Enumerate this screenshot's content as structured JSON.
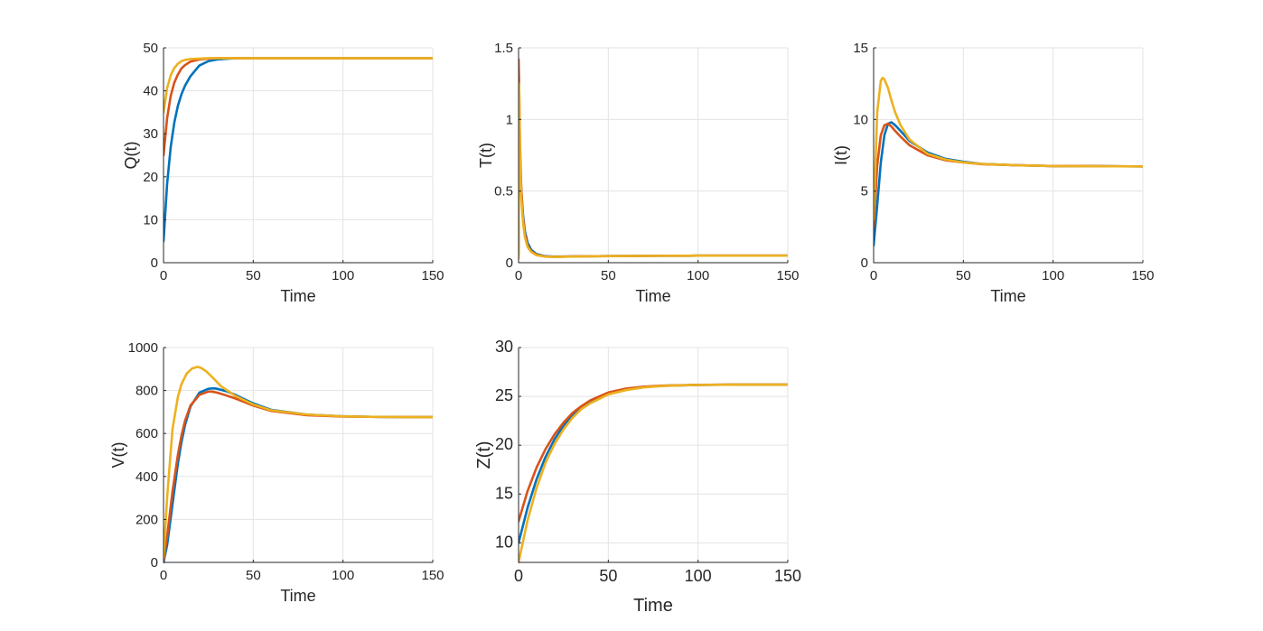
{
  "figure": {
    "colors": [
      "#0072BD",
      "#D95319",
      "#EDB120"
    ]
  },
  "chart_data": [
    {
      "type": "line",
      "xlabel": "Time",
      "ylabel": "Q(t)",
      "xlim": [
        0,
        150
      ],
      "ylim": [
        0,
        50
      ],
      "xticks": [
        0,
        50,
        100,
        150
      ],
      "yticks": [
        0,
        10,
        20,
        30,
        40,
        50
      ],
      "grid": true,
      "series": [
        {
          "color": "#0072BD",
          "x": [
            0,
            2,
            4,
            6,
            8,
            10,
            12,
            15,
            20,
            25,
            30,
            40,
            60,
            80,
            100,
            120,
            150
          ],
          "y": [
            5,
            18.3,
            26.9,
            32.6,
            36.5,
            39.2,
            41.2,
            43.4,
            45.9,
            46.9,
            47.3,
            47.6,
            47.6,
            47.6,
            47.6,
            47.6,
            47.6
          ]
        },
        {
          "color": "#D95319",
          "x": [
            0,
            2,
            4,
            6,
            8,
            10,
            12,
            15,
            20,
            25,
            30,
            40,
            60,
            80,
            100,
            120,
            150
          ],
          "y": [
            25,
            33.6,
            38.8,
            41.9,
            43.8,
            45.2,
            46.0,
            46.8,
            47.3,
            47.5,
            47.6,
            47.6,
            47.6,
            47.6,
            47.6,
            47.6,
            47.6
          ]
        },
        {
          "color": "#EDB120",
          "x": [
            0,
            2,
            4,
            6,
            8,
            10,
            12,
            15,
            20,
            25,
            30,
            40,
            60,
            80,
            100,
            120,
            150
          ],
          "y": [
            35,
            40.6,
            43.6,
            45.3,
            46.3,
            46.9,
            47.2,
            47.4,
            47.5,
            47.6,
            47.6,
            47.6,
            47.6,
            47.6,
            47.6,
            47.6,
            47.6
          ]
        }
      ]
    },
    {
      "type": "line",
      "xlabel": "Time",
      "ylabel": "T(t)",
      "xlim": [
        0,
        150
      ],
      "ylim": [
        0,
        1.5
      ],
      "xticks": [
        0,
        50,
        100,
        150
      ],
      "yticks": [
        0,
        0.5,
        1,
        1.5
      ],
      "grid": true,
      "series": [
        {
          "color": "#0072BD",
          "x": [
            0,
            0.3,
            0.8,
            1.5,
            2.5,
            3.5,
            5,
            7,
            10,
            15,
            20,
            30,
            50,
            80,
            100,
            130,
            150
          ],
          "y": [
            0.06,
            0.95,
            0.72,
            0.5,
            0.33,
            0.22,
            0.14,
            0.09,
            0.06,
            0.045,
            0.042,
            0.044,
            0.046,
            0.048,
            0.049,
            0.049,
            0.049
          ]
        },
        {
          "color": "#D95319",
          "x": [
            0,
            0.3,
            0.8,
            1.5,
            2.5,
            3.5,
            5,
            7,
            10,
            15,
            20,
            30,
            50,
            80,
            100,
            130,
            150
          ],
          "y": [
            1.42,
            1.25,
            0.82,
            0.52,
            0.31,
            0.2,
            0.12,
            0.08,
            0.055,
            0.043,
            0.041,
            0.044,
            0.046,
            0.048,
            0.049,
            0.049,
            0.049
          ]
        },
        {
          "color": "#EDB120",
          "x": [
            0,
            0.3,
            0.8,
            1.5,
            2.5,
            3.5,
            5,
            7,
            10,
            15,
            20,
            30,
            50,
            80,
            100,
            130,
            150
          ],
          "y": [
            0.03,
            1.25,
            0.75,
            0.46,
            0.28,
            0.18,
            0.11,
            0.075,
            0.052,
            0.042,
            0.04,
            0.043,
            0.046,
            0.048,
            0.049,
            0.049,
            0.049
          ]
        }
      ]
    },
    {
      "type": "line",
      "xlabel": "Time",
      "ylabel": "I(t)",
      "xlim": [
        0,
        150
      ],
      "ylim": [
        0,
        15
      ],
      "xticks": [
        0,
        50,
        100,
        150
      ],
      "yticks": [
        0,
        5,
        10,
        15
      ],
      "grid": true,
      "series": [
        {
          "color": "#0072BD",
          "x": [
            0,
            2,
            4,
            6,
            8,
            10,
            12,
            15,
            20,
            30,
            40,
            50,
            60,
            80,
            100,
            120,
            150
          ],
          "y": [
            1.2,
            4.0,
            7.0,
            8.9,
            9.7,
            9.8,
            9.6,
            9.2,
            8.5,
            7.7,
            7.25,
            7.05,
            6.9,
            6.8,
            6.75,
            6.75,
            6.72
          ]
        },
        {
          "color": "#D95319",
          "x": [
            0,
            2,
            4,
            6,
            8,
            10,
            12,
            15,
            20,
            30,
            40,
            50,
            60,
            80,
            100,
            120,
            150
          ],
          "y": [
            2.5,
            6.8,
            8.9,
            9.6,
            9.7,
            9.5,
            9.2,
            8.8,
            8.2,
            7.5,
            7.15,
            7.0,
            6.88,
            6.8,
            6.75,
            6.75,
            6.72
          ]
        },
        {
          "color": "#EDB120",
          "x": [
            0,
            2,
            4,
            5,
            6,
            8,
            10,
            12,
            15,
            20,
            30,
            40,
            50,
            60,
            80,
            100,
            150
          ],
          "y": [
            3.0,
            10.5,
            12.7,
            12.9,
            12.8,
            12.2,
            11.3,
            10.5,
            9.6,
            8.6,
            7.6,
            7.2,
            7.0,
            6.9,
            6.8,
            6.75,
            6.72
          ]
        }
      ]
    },
    {
      "type": "line",
      "xlabel": "Time",
      "ylabel": "V(t)",
      "xlim": [
        0,
        150
      ],
      "ylim": [
        0,
        1000
      ],
      "xticks": [
        0,
        50,
        100,
        150
      ],
      "yticks": [
        0,
        200,
        400,
        600,
        800,
        1000
      ],
      "grid": true,
      "series": [
        {
          "color": "#0072BD",
          "x": [
            0,
            2,
            5,
            8,
            10,
            12,
            15,
            20,
            25,
            28,
            30,
            35,
            40,
            50,
            60,
            80,
            100,
            120,
            150
          ],
          "y": [
            0,
            80,
            270,
            460,
            560,
            640,
            725,
            790,
            808,
            810,
            808,
            797,
            780,
            740,
            710,
            688,
            680,
            677,
            676
          ]
        },
        {
          "color": "#D95319",
          "x": [
            0,
            2,
            5,
            8,
            10,
            12,
            15,
            20,
            25,
            27,
            30,
            35,
            40,
            50,
            60,
            80,
            100,
            120,
            150
          ],
          "y": [
            10,
            120,
            330,
            500,
            590,
            660,
            730,
            780,
            795,
            795,
            790,
            777,
            763,
            730,
            705,
            685,
            679,
            677,
            676
          ]
        },
        {
          "color": "#EDB120",
          "x": [
            0,
            2,
            5,
            8,
            10,
            13,
            16,
            19,
            21,
            24,
            28,
            32,
            40,
            50,
            60,
            80,
            100,
            120,
            150
          ],
          "y": [
            20,
            300,
            620,
            770,
            830,
            880,
            903,
            910,
            905,
            888,
            855,
            820,
            775,
            735,
            708,
            688,
            680,
            677,
            676
          ]
        }
      ]
    },
    {
      "type": "line",
      "xlabel": "Time",
      "ylabel": "Z(t)",
      "xlim": [
        0,
        150
      ],
      "ylim": [
        8,
        30
      ],
      "xticks": [
        0,
        50,
        100,
        150
      ],
      "yticks": [
        10,
        15,
        20,
        25,
        30
      ],
      "grid": true,
      "series": [
        {
          "color": "#0072BD",
          "x": [
            0,
            5,
            10,
            15,
            20,
            25,
            30,
            35,
            40,
            50,
            60,
            70,
            80,
            100,
            120,
            150
          ],
          "y": [
            10,
            13.6,
            16.5,
            18.8,
            20.6,
            22.0,
            23.1,
            23.9,
            24.5,
            25.3,
            25.7,
            25.95,
            26.08,
            26.17,
            26.2,
            26.2
          ]
        },
        {
          "color": "#D95319",
          "x": [
            0,
            5,
            10,
            15,
            20,
            25,
            30,
            35,
            40,
            50,
            60,
            70,
            80,
            100,
            120,
            150
          ],
          "y": [
            12.2,
            15.3,
            17.7,
            19.6,
            21.1,
            22.3,
            23.3,
            24.0,
            24.6,
            25.4,
            25.8,
            26.0,
            26.1,
            26.18,
            26.2,
            26.2
          ]
        },
        {
          "color": "#EDB120",
          "x": [
            0,
            5,
            10,
            15,
            20,
            25,
            30,
            35,
            40,
            50,
            60,
            70,
            80,
            100,
            120,
            150
          ],
          "y": [
            8.0,
            12.3,
            15.6,
            18.2,
            20.1,
            21.6,
            22.8,
            23.7,
            24.3,
            25.2,
            25.65,
            25.93,
            26.07,
            26.17,
            26.2,
            26.2
          ]
        }
      ]
    }
  ]
}
